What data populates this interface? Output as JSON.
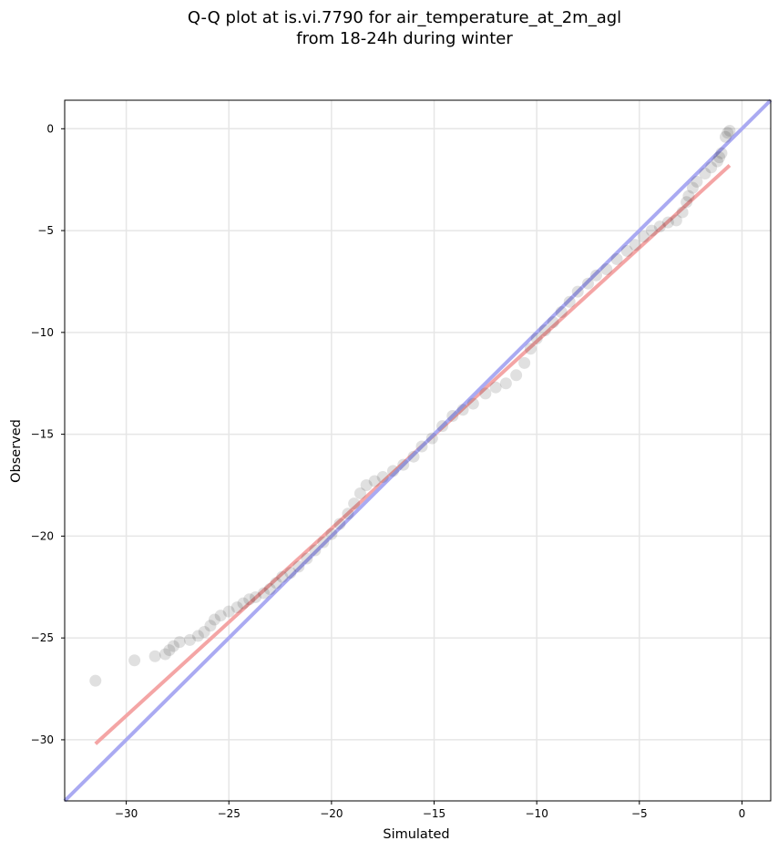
{
  "chart_data": {
    "type": "scatter",
    "title": "Q-Q plot at is.vi.7790 for air_temperature_at_2m_agl",
    "subtitle": "from 18-24h during winter",
    "xlabel": "Simulated",
    "ylabel": "Observed",
    "xlim": [
      -33.0,
      1.4
    ],
    "ylim": [
      -33.0,
      1.4
    ],
    "xticks": [
      -30,
      -25,
      -20,
      -15,
      -10,
      -5,
      0
    ],
    "yticks": [
      -30,
      -25,
      -20,
      -15,
      -10,
      -5,
      0
    ],
    "xtick_labels": [
      "−30",
      "−25",
      "−20",
      "−15",
      "−10",
      "−5",
      "0"
    ],
    "ytick_labels": [
      "−30",
      "−25",
      "−20",
      "−15",
      "−10",
      "−5",
      "0"
    ],
    "grid": true,
    "points_color": "#000000",
    "series": [
      {
        "type": "scatter",
        "points": [
          [
            -31.5,
            -27.1
          ],
          [
            -29.6,
            -26.1
          ],
          [
            -28.6,
            -25.9
          ],
          [
            -28.1,
            -25.8
          ],
          [
            -27.9,
            -25.6
          ],
          [
            -27.7,
            -25.4
          ],
          [
            -27.4,
            -25.2
          ],
          [
            -26.9,
            -25.1
          ],
          [
            -26.5,
            -24.9
          ],
          [
            -26.2,
            -24.7
          ],
          [
            -25.9,
            -24.4
          ],
          [
            -25.7,
            -24.1
          ],
          [
            -25.4,
            -23.9
          ],
          [
            -25.0,
            -23.7
          ],
          [
            -24.6,
            -23.5
          ],
          [
            -24.3,
            -23.3
          ],
          [
            -24.0,
            -23.1
          ],
          [
            -23.7,
            -23.0
          ],
          [
            -23.3,
            -22.8
          ],
          [
            -23.0,
            -22.6
          ],
          [
            -22.7,
            -22.3
          ],
          [
            -22.4,
            -22.0
          ],
          [
            -22.0,
            -21.8
          ],
          [
            -21.6,
            -21.5
          ],
          [
            -21.2,
            -21.1
          ],
          [
            -20.8,
            -20.7
          ],
          [
            -20.4,
            -20.3
          ],
          [
            -20.0,
            -19.9
          ],
          [
            -19.6,
            -19.4
          ],
          [
            -19.2,
            -18.9
          ],
          [
            -18.9,
            -18.4
          ],
          [
            -18.6,
            -17.9
          ],
          [
            -18.3,
            -17.5
          ],
          [
            -17.9,
            -17.3
          ],
          [
            -17.5,
            -17.1
          ],
          [
            -17.0,
            -16.8
          ],
          [
            -16.5,
            -16.5
          ],
          [
            -16.0,
            -16.1
          ],
          [
            -15.6,
            -15.6
          ],
          [
            -15.1,
            -15.2
          ],
          [
            -14.6,
            -14.6
          ],
          [
            -14.1,
            -14.1
          ],
          [
            -13.6,
            -13.8
          ],
          [
            -13.1,
            -13.5
          ],
          [
            -12.5,
            -13.0
          ],
          [
            -12.0,
            -12.7
          ],
          [
            -11.5,
            -12.5
          ],
          [
            -11.0,
            -12.1
          ],
          [
            -10.6,
            -11.5
          ],
          [
            -10.3,
            -10.8
          ],
          [
            -10.0,
            -10.3
          ],
          [
            -9.6,
            -9.9
          ],
          [
            -9.2,
            -9.5
          ],
          [
            -8.8,
            -9.0
          ],
          [
            -8.4,
            -8.5
          ],
          [
            -8.0,
            -8.0
          ],
          [
            -7.5,
            -7.6
          ],
          [
            -7.1,
            -7.2
          ],
          [
            -6.6,
            -6.9
          ],
          [
            -6.1,
            -6.4
          ],
          [
            -5.6,
            -6.0
          ],
          [
            -5.2,
            -5.7
          ],
          [
            -4.8,
            -5.3
          ],
          [
            -4.4,
            -5.0
          ],
          [
            -4.0,
            -4.8
          ],
          [
            -3.6,
            -4.6
          ],
          [
            -3.2,
            -4.5
          ],
          [
            -2.9,
            -4.1
          ],
          [
            -2.7,
            -3.6
          ],
          [
            -2.6,
            -3.3
          ],
          [
            -2.4,
            -2.9
          ],
          [
            -2.2,
            -2.6
          ],
          [
            -1.8,
            -2.2
          ],
          [
            -1.5,
            -1.9
          ],
          [
            -1.2,
            -1.6
          ],
          [
            -1.1,
            -1.4
          ],
          [
            -1.0,
            -1.2
          ],
          [
            -0.8,
            -0.4
          ],
          [
            -0.7,
            -0.2
          ],
          [
            -0.6,
            -0.1
          ]
        ]
      },
      {
        "type": "line",
        "color": "#f4a5a5",
        "points": [
          [
            -31.5,
            -30.2
          ],
          [
            -0.6,
            -1.8
          ]
        ]
      },
      {
        "type": "line",
        "color": "#aaaaf2",
        "points": [
          [
            -33.0,
            -33.0
          ],
          [
            1.4,
            1.4
          ]
        ]
      }
    ]
  }
}
